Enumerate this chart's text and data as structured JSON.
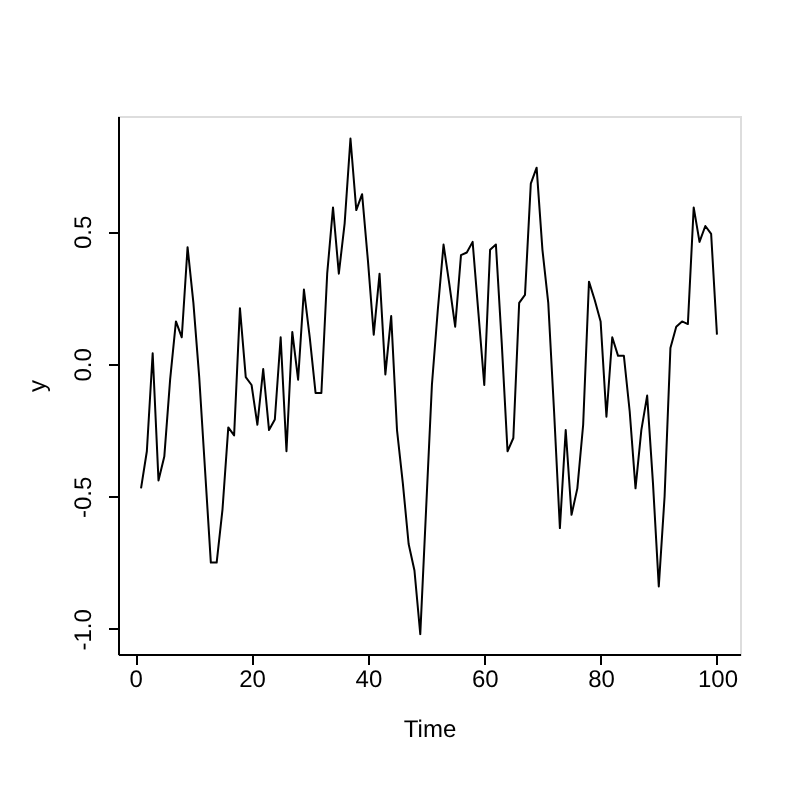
{
  "chart_data": {
    "type": "line",
    "xlabel": "Time",
    "ylabel": "y",
    "x": [
      1,
      2,
      3,
      4,
      5,
      6,
      7,
      8,
      9,
      10,
      11,
      12,
      13,
      14,
      15,
      16,
      17,
      18,
      19,
      20,
      21,
      22,
      23,
      24,
      25,
      26,
      27,
      28,
      29,
      30,
      31,
      32,
      33,
      34,
      35,
      36,
      37,
      38,
      39,
      40,
      41,
      42,
      43,
      44,
      45,
      46,
      47,
      48,
      49,
      50,
      51,
      52,
      53,
      54,
      55,
      56,
      57,
      58,
      59,
      60,
      61,
      62,
      63,
      64,
      65,
      66,
      67,
      68,
      69,
      70,
      71,
      72,
      73,
      74,
      75,
      76,
      77,
      78,
      79,
      80,
      81,
      82,
      83,
      84,
      85,
      86,
      87,
      88,
      89,
      90,
      91,
      92,
      93,
      94,
      95,
      96,
      97,
      98,
      99,
      100
    ],
    "series": [
      {
        "color": "#000000",
        "values": [
          -0.47,
          -0.33,
          0.04,
          -0.44,
          -0.35,
          -0.06,
          0.16,
          0.1,
          0.44,
          0.23,
          -0.05,
          -0.4,
          -0.75,
          -0.75,
          -0.55,
          -0.24,
          -0.27,
          0.21,
          -0.05,
          -0.08,
          -0.23,
          -0.02,
          -0.25,
          -0.21,
          0.1,
          -0.33,
          0.12,
          -0.06,
          0.28,
          0.1,
          -0.11,
          -0.11,
          0.34,
          0.59,
          0.34,
          0.53,
          0.85,
          0.58,
          0.64,
          0.39,
          0.11,
          0.34,
          -0.04,
          0.18,
          -0.25,
          -0.45,
          -0.68,
          -0.78,
          -1.02,
          -0.55,
          -0.08,
          0.2,
          0.45,
          0.3,
          0.14,
          0.41,
          0.42,
          0.46,
          0.19,
          -0.08,
          0.43,
          0.45,
          0.08,
          -0.33,
          -0.28,
          0.23,
          0.26,
          0.68,
          0.74,
          0.43,
          0.23,
          -0.18,
          -0.62,
          -0.25,
          -0.57,
          -0.47,
          -0.23,
          0.31,
          0.24,
          0.16,
          -0.2,
          0.1,
          0.03,
          0.03,
          -0.18,
          -0.47,
          -0.25,
          -0.12,
          -0.45,
          -0.84,
          -0.5,
          0.06,
          0.14,
          0.16,
          0.15,
          0.59,
          0.46,
          0.52,
          0.49,
          0.11
        ]
      }
    ],
    "xlim": [
      -2.96,
      103.96
    ],
    "xticks": [
      0,
      20,
      40,
      60,
      80,
      100
    ],
    "ylim": [
      -1.095,
      0.935
    ],
    "yticks": [
      {
        "value": -1.0,
        "label": "-1.0"
      },
      {
        "value": -0.5,
        "label": "-0.5"
      },
      {
        "value": 0.0,
        "label": "0.0"
      },
      0.5
    ],
    "grid": false,
    "marker": "none",
    "line_style": "solid"
  }
}
